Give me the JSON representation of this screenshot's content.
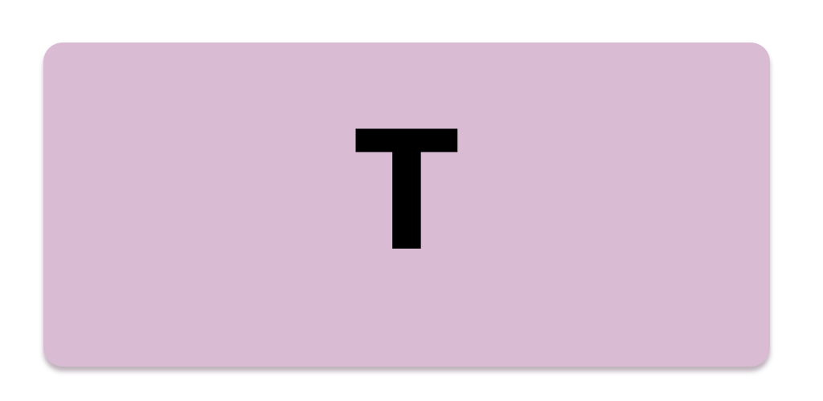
{
  "tile": {
    "letter": "T",
    "background_color": "#d9bbd4",
    "text_color": "#000000"
  }
}
